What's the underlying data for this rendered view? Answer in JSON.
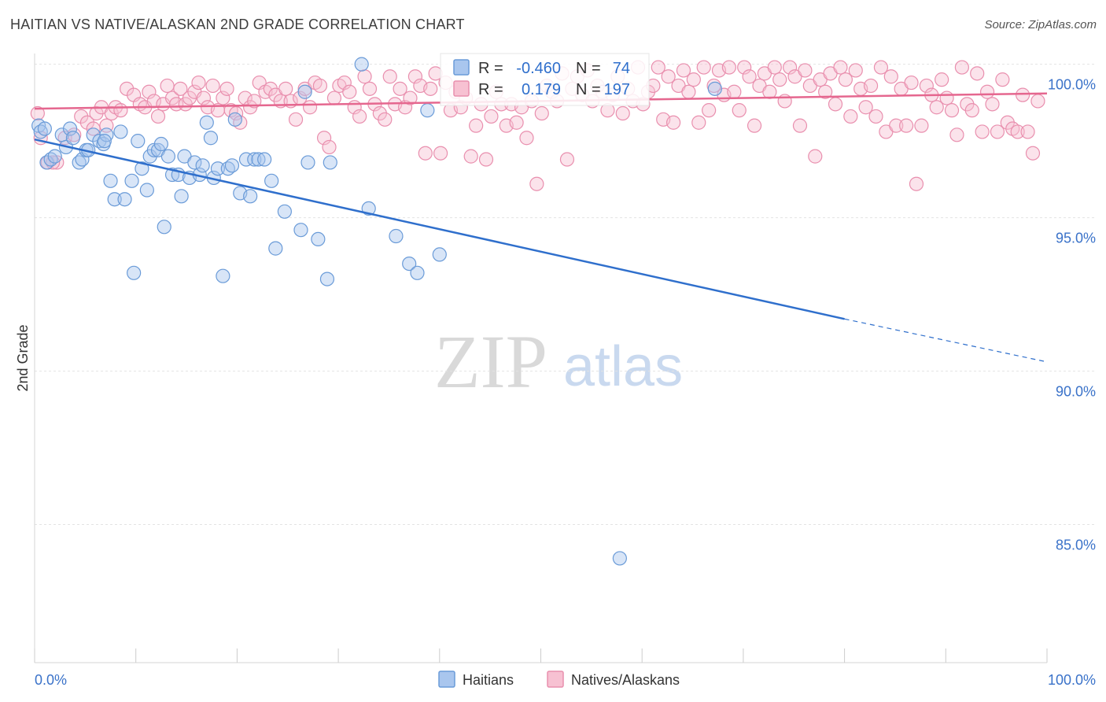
{
  "title": "HAITIAN VS NATIVE/ALASKAN 2ND GRADE CORRELATION CHART",
  "source": "Source: ZipAtlas.com",
  "watermark": {
    "zip": "ZIP",
    "atlas": "atlas"
  },
  "colors": {
    "blue_fill": "#a9c6ee",
    "blue_stroke": "#6a9bd8",
    "blue_line": "#2f6fcc",
    "pink_fill": "#f7c1d2",
    "pink_stroke": "#e98fae",
    "pink_line": "#e5678f",
    "axis_text": "#3a72c9",
    "grid": "#e3e3e3"
  },
  "legend": {
    "row1": {
      "r_label": "R =",
      "r_value": "-0.460",
      "n_label": "N =",
      "n_value": "74"
    },
    "row2": {
      "r_label": "R =",
      "r_value": "0.179",
      "n_label": "N =",
      "n_value": "197"
    }
  },
  "bottom_legend": [
    "Haitians",
    "Natives/Alaskans"
  ],
  "chart_data": {
    "type": "scatter",
    "title": "HAITIAN VS NATIVE/ALASKAN 2ND GRADE CORRELATION CHART",
    "xlabel": "",
    "ylabel": "2nd Grade",
    "xlim": [
      0,
      100
    ],
    "ylim": [
      80.5,
      100.35
    ],
    "x_tick_labels": [
      "0.0%",
      "100.0%"
    ],
    "y_ticks": [
      100,
      95,
      90,
      85
    ],
    "y_tick_labels": [
      "100.0%",
      "95.0%",
      "90.0%",
      "85.0%"
    ],
    "grid": true,
    "legend_position": "top-center",
    "series": [
      {
        "name": "Haitians",
        "r": -0.46,
        "n": 74,
        "trend": {
          "x": [
            0,
            80
          ],
          "y": [
            97.55,
            91.7
          ],
          "dashed_to": [
            100,
            90.3
          ]
        },
        "points": [
          [
            0.4,
            98.0
          ],
          [
            0.6,
            97.8
          ],
          [
            1.0,
            97.9
          ],
          [
            1.2,
            96.8
          ],
          [
            1.6,
            96.9
          ],
          [
            2.0,
            97.0
          ],
          [
            2.7,
            97.7
          ],
          [
            3.1,
            97.3
          ],
          [
            3.5,
            97.9
          ],
          [
            3.8,
            97.6
          ],
          [
            4.4,
            96.8
          ],
          [
            4.7,
            96.9
          ],
          [
            5.1,
            97.2
          ],
          [
            5.3,
            97.2
          ],
          [
            5.8,
            97.7
          ],
          [
            6.4,
            97.5
          ],
          [
            6.8,
            97.4
          ],
          [
            7.1,
            97.7
          ],
          [
            7.5,
            96.2
          ],
          [
            7.9,
            95.6
          ],
          [
            8.5,
            97.8
          ],
          [
            8.9,
            95.6
          ],
          [
            9.6,
            96.2
          ],
          [
            10.2,
            97.5
          ],
          [
            10.6,
            96.6
          ],
          [
            11.1,
            95.9
          ],
          [
            11.4,
            97.0
          ],
          [
            11.8,
            97.2
          ],
          [
            12.2,
            97.2
          ],
          [
            12.5,
            97.4
          ],
          [
            12.8,
            94.7
          ],
          [
            13.2,
            97.0
          ],
          [
            13.6,
            96.4
          ],
          [
            14.2,
            96.4
          ],
          [
            14.5,
            95.7
          ],
          [
            14.8,
            97.0
          ],
          [
            15.3,
            96.3
          ],
          [
            15.8,
            96.8
          ],
          [
            16.3,
            96.4
          ],
          [
            16.6,
            96.7
          ],
          [
            17.0,
            98.1
          ],
          [
            17.4,
            97.6
          ],
          [
            17.7,
            96.3
          ],
          [
            18.1,
            96.6
          ],
          [
            18.6,
            93.1
          ],
          [
            19.1,
            96.6
          ],
          [
            19.5,
            96.7
          ],
          [
            19.8,
            98.2
          ],
          [
            20.3,
            95.8
          ],
          [
            20.9,
            96.9
          ],
          [
            21.3,
            95.7
          ],
          [
            21.7,
            96.9
          ],
          [
            22.1,
            96.9
          ],
          [
            22.7,
            96.9
          ],
          [
            23.4,
            96.2
          ],
          [
            23.8,
            94.0
          ],
          [
            24.7,
            95.2
          ],
          [
            26.3,
            94.6
          ],
          [
            27.0,
            96.8
          ],
          [
            28.0,
            94.3
          ],
          [
            28.9,
            93.0
          ],
          [
            29.2,
            96.8
          ],
          [
            32.3,
            100.0
          ],
          [
            33.0,
            95.3
          ],
          [
            35.7,
            94.4
          ],
          [
            37.0,
            93.5
          ],
          [
            37.8,
            93.2
          ],
          [
            38.8,
            98.5
          ],
          [
            40.0,
            93.8
          ],
          [
            9.8,
            93.2
          ],
          [
            6.9,
            97.5
          ],
          [
            57.8,
            83.9
          ],
          [
            67.2,
            99.2
          ],
          [
            26.7,
            99.1
          ]
        ]
      },
      {
        "name": "Natives/Alaskans",
        "r": 0.179,
        "n": 197,
        "trend": {
          "x": [
            0,
            100
          ],
          "y": [
            98.55,
            99.05
          ]
        },
        "points": [
          [
            0.3,
            98.4
          ],
          [
            0.6,
            97.6
          ],
          [
            1.3,
            96.8
          ],
          [
            2.2,
            96.8
          ],
          [
            3.0,
            97.6
          ],
          [
            3.9,
            97.7
          ],
          [
            4.6,
            98.3
          ],
          [
            5.2,
            98.1
          ],
          [
            5.8,
            97.9
          ],
          [
            6.1,
            98.4
          ],
          [
            6.6,
            98.6
          ],
          [
            7.1,
            98.0
          ],
          [
            7.6,
            98.4
          ],
          [
            8.0,
            98.6
          ],
          [
            8.5,
            98.5
          ],
          [
            9.1,
            99.2
          ],
          [
            9.8,
            99.0
          ],
          [
            10.4,
            98.7
          ],
          [
            10.9,
            98.6
          ],
          [
            11.3,
            99.1
          ],
          [
            11.8,
            98.8
          ],
          [
            12.2,
            98.3
          ],
          [
            12.7,
            98.7
          ],
          [
            13.1,
            99.3
          ],
          [
            13.6,
            98.9
          ],
          [
            14.0,
            98.7
          ],
          [
            14.4,
            99.2
          ],
          [
            14.9,
            98.7
          ],
          [
            15.3,
            98.9
          ],
          [
            15.8,
            99.1
          ],
          [
            16.2,
            99.4
          ],
          [
            16.7,
            98.9
          ],
          [
            17.1,
            98.6
          ],
          [
            17.6,
            99.3
          ],
          [
            18.1,
            98.5
          ],
          [
            18.6,
            98.9
          ],
          [
            19.0,
            99.2
          ],
          [
            19.4,
            98.5
          ],
          [
            19.9,
            98.4
          ],
          [
            20.3,
            98.1
          ],
          [
            20.8,
            98.9
          ],
          [
            21.3,
            98.6
          ],
          [
            21.7,
            98.8
          ],
          [
            22.2,
            99.4
          ],
          [
            22.8,
            99.1
          ],
          [
            23.3,
            99.2
          ],
          [
            23.8,
            99.0
          ],
          [
            24.3,
            98.8
          ],
          [
            24.8,
            99.2
          ],
          [
            25.3,
            98.8
          ],
          [
            25.8,
            98.2
          ],
          [
            26.2,
            98.9
          ],
          [
            26.7,
            99.2
          ],
          [
            27.2,
            98.6
          ],
          [
            27.7,
            99.4
          ],
          [
            28.2,
            99.3
          ],
          [
            28.6,
            97.6
          ],
          [
            29.1,
            97.3
          ],
          [
            29.6,
            98.9
          ],
          [
            30.1,
            99.3
          ],
          [
            30.6,
            99.4
          ],
          [
            31.1,
            99.1
          ],
          [
            31.6,
            98.6
          ],
          [
            32.1,
            98.3
          ],
          [
            32.6,
            99.6
          ],
          [
            33.1,
            99.2
          ],
          [
            33.6,
            98.7
          ],
          [
            34.1,
            98.4
          ],
          [
            34.6,
            98.2
          ],
          [
            35.1,
            99.6
          ],
          [
            35.6,
            98.7
          ],
          [
            36.1,
            99.2
          ],
          [
            36.6,
            98.6
          ],
          [
            37.1,
            98.9
          ],
          [
            37.6,
            99.6
          ],
          [
            38.1,
            99.3
          ],
          [
            38.6,
            97.1
          ],
          [
            39.1,
            99.2
          ],
          [
            39.6,
            99.7
          ],
          [
            40.1,
            97.1
          ],
          [
            40.6,
            99.4
          ],
          [
            41.1,
            98.5
          ],
          [
            41.6,
            99.1
          ],
          [
            42.1,
            98.6
          ],
          [
            42.6,
            98.9
          ],
          [
            43.1,
            97.0
          ],
          [
            43.6,
            98.0
          ],
          [
            44.1,
            98.7
          ],
          [
            44.6,
            96.9
          ],
          [
            45.1,
            98.3
          ],
          [
            45.6,
            99.1
          ],
          [
            46.1,
            98.7
          ],
          [
            46.6,
            98.0
          ],
          [
            47.1,
            98.7
          ],
          [
            47.6,
            98.1
          ],
          [
            48.1,
            98.6
          ],
          [
            48.6,
            97.6
          ],
          [
            49.1,
            98.8
          ],
          [
            49.6,
            96.1
          ],
          [
            50.1,
            98.4
          ],
          [
            50.6,
            99.3
          ],
          [
            51.1,
            99.1
          ],
          [
            51.6,
            98.8
          ],
          [
            52.1,
            99.7
          ],
          [
            52.6,
            96.9
          ],
          [
            53.1,
            99.2
          ],
          [
            53.6,
            99.6
          ],
          [
            54.1,
            99.0
          ],
          [
            54.6,
            99.8
          ],
          [
            55.1,
            98.8
          ],
          [
            55.6,
            99.3
          ],
          [
            56.1,
            99.1
          ],
          [
            56.6,
            98.5
          ],
          [
            57.1,
            99.0
          ],
          [
            57.6,
            99.6
          ],
          [
            58.1,
            98.4
          ],
          [
            58.6,
            99.2
          ],
          [
            59.1,
            98.8
          ],
          [
            59.6,
            99.9
          ],
          [
            60.1,
            98.7
          ],
          [
            60.6,
            99.1
          ],
          [
            61.1,
            99.3
          ],
          [
            61.6,
            99.9
          ],
          [
            62.1,
            98.2
          ],
          [
            62.6,
            99.6
          ],
          [
            63.1,
            98.1
          ],
          [
            63.6,
            99.3
          ],
          [
            64.1,
            99.8
          ],
          [
            64.6,
            99.1
          ],
          [
            65.1,
            99.5
          ],
          [
            65.6,
            98.1
          ],
          [
            66.1,
            99.9
          ],
          [
            66.6,
            98.5
          ],
          [
            67.1,
            99.3
          ],
          [
            67.6,
            99.8
          ],
          [
            68.1,
            99.0
          ],
          [
            68.6,
            99.9
          ],
          [
            69.1,
            99.1
          ],
          [
            69.6,
            98.5
          ],
          [
            70.1,
            99.9
          ],
          [
            70.6,
            99.6
          ],
          [
            71.1,
            98.0
          ],
          [
            71.6,
            99.3
          ],
          [
            72.1,
            99.7
          ],
          [
            72.6,
            99.1
          ],
          [
            73.1,
            99.9
          ],
          [
            73.6,
            99.5
          ],
          [
            74.1,
            98.8
          ],
          [
            74.6,
            99.9
          ],
          [
            75.1,
            99.6
          ],
          [
            75.6,
            98.0
          ],
          [
            76.1,
            99.8
          ],
          [
            76.6,
            99.3
          ],
          [
            77.1,
            97.0
          ],
          [
            77.6,
            99.5
          ],
          [
            78.1,
            99.1
          ],
          [
            78.6,
            99.7
          ],
          [
            79.1,
            98.7
          ],
          [
            79.6,
            99.9
          ],
          [
            80.1,
            99.5
          ],
          [
            80.6,
            98.3
          ],
          [
            81.1,
            99.8
          ],
          [
            81.6,
            99.2
          ],
          [
            82.1,
            98.6
          ],
          [
            82.6,
            99.3
          ],
          [
            83.1,
            98.3
          ],
          [
            83.6,
            99.9
          ],
          [
            84.1,
            97.8
          ],
          [
            84.6,
            99.6
          ],
          [
            85.1,
            98.0
          ],
          [
            85.6,
            99.2
          ],
          [
            86.1,
            98.0
          ],
          [
            86.6,
            99.4
          ],
          [
            87.1,
            96.1
          ],
          [
            87.6,
            98.0
          ],
          [
            88.1,
            99.3
          ],
          [
            88.6,
            99.0
          ],
          [
            89.1,
            98.6
          ],
          [
            89.6,
            99.5
          ],
          [
            90.1,
            98.9
          ],
          [
            90.6,
            98.5
          ],
          [
            91.1,
            97.7
          ],
          [
            91.6,
            99.9
          ],
          [
            92.1,
            98.7
          ],
          [
            92.6,
            98.5
          ],
          [
            93.1,
            99.7
          ],
          [
            93.6,
            97.8
          ],
          [
            94.1,
            99.1
          ],
          [
            94.6,
            98.7
          ],
          [
            95.1,
            97.8
          ],
          [
            95.6,
            99.5
          ],
          [
            96.1,
            98.1
          ],
          [
            96.6,
            97.9
          ],
          [
            97.1,
            97.8
          ],
          [
            97.6,
            99.0
          ],
          [
            98.1,
            97.8
          ],
          [
            98.6,
            97.1
          ],
          [
            99.1,
            98.8
          ],
          [
            1.8,
            96.8
          ]
        ]
      }
    ]
  }
}
